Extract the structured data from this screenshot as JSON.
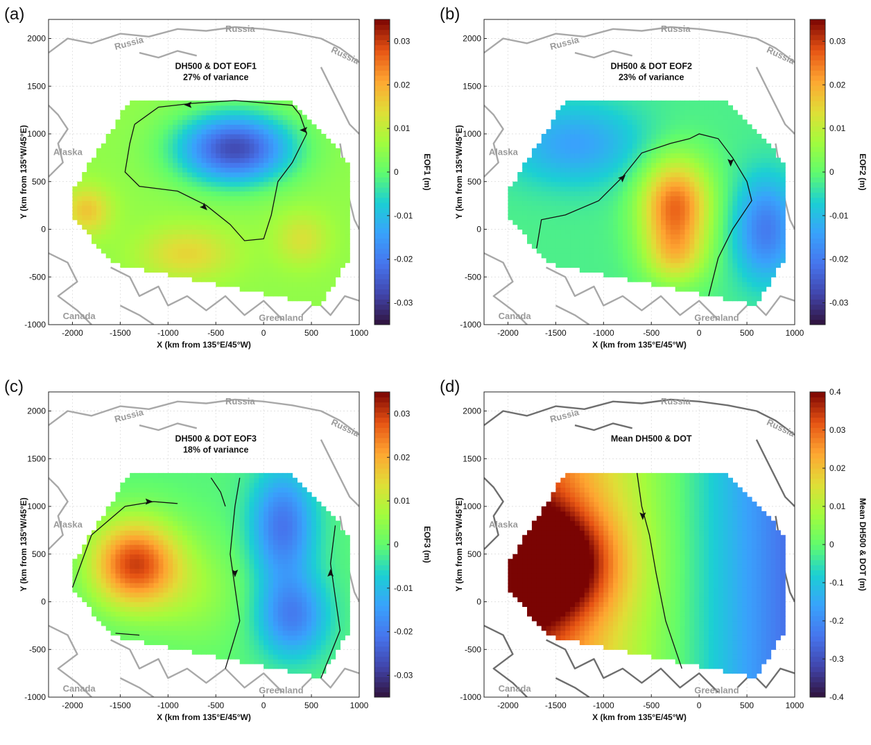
{
  "figure": {
    "xlabel": "X (km from 135°E/45°W)",
    "ylabel": "Y (km from 135°W/45°E)",
    "geo_labels": [
      "Russia",
      "Russia",
      "Russia",
      "Alaska",
      "Canada",
      "Greenland"
    ]
  },
  "chart_data": [
    {
      "panel": "(a)",
      "type": "heatmap",
      "annotation_line1": "DH500 & DOT EOF1",
      "annotation_line2": "27% of variance",
      "colorbar_label": "EOF1 (m)",
      "colorbar_ticks": [
        "0.03",
        "0.02",
        "0.01",
        "0",
        "-0.01",
        "-0.02",
        "-0.03"
      ],
      "clim": [
        -0.035,
        0.035
      ],
      "xlim": [
        -2250,
        1000
      ],
      "ylim": [
        -1000,
        2200
      ],
      "xticks": [
        -2000,
        -1500,
        -1000,
        -500,
        0,
        500,
        1000
      ],
      "yticks": [
        -1000,
        -500,
        0,
        500,
        1000,
        1500,
        2000
      ],
      "features": [
        {
          "x": -300,
          "y": 850,
          "sx": 420,
          "sy": 260,
          "amp": -0.032
        },
        {
          "x": -1850,
          "y": 200,
          "sx": 180,
          "sy": 180,
          "amp": 0.012
        },
        {
          "x": -800,
          "y": -250,
          "sx": 350,
          "sy": 200,
          "amp": 0.01
        },
        {
          "x": 400,
          "y": -100,
          "sx": 200,
          "sy": 200,
          "amp": 0.008
        }
      ],
      "base": 0.005,
      "streamlines": [
        [
          [
            -1350,
            1100
          ],
          [
            -1400,
            900
          ],
          [
            -1450,
            600
          ],
          [
            -1300,
            450
          ],
          [
            -900,
            400
          ],
          [
            -600,
            250
          ],
          [
            -350,
            50
          ],
          [
            -200,
            -120
          ],
          [
            0,
            -100
          ],
          [
            80,
            150
          ],
          [
            150,
            500
          ],
          [
            300,
            700
          ],
          [
            450,
            1000
          ],
          [
            380,
            1200
          ],
          [
            300,
            1300
          ],
          [
            -300,
            1350
          ],
          [
            -750,
            1320
          ],
          [
            -1100,
            1280
          ],
          [
            -1350,
            1100
          ]
        ]
      ],
      "arrows": [
        {
          "x": -790,
          "y": 1305,
          "dir": "left"
        },
        {
          "x": -620,
          "y": 230,
          "dir": "down-right"
        },
        {
          "x": 420,
          "y": 1040,
          "dir": "left"
        }
      ]
    },
    {
      "panel": "(b)",
      "type": "heatmap",
      "annotation_line1": "DH500 & DOT EOF2",
      "annotation_line2": "23% of variance",
      "colorbar_label": "EOF2 (m)",
      "colorbar_ticks": [
        "0.03",
        "0.02",
        "0.01",
        "0",
        "-0.01",
        "-0.02",
        "-0.03"
      ],
      "clim": [
        -0.035,
        0.035
      ],
      "xlim": [
        -2250,
        1000
      ],
      "ylim": [
        -1000,
        2200
      ],
      "xticks": [
        -2000,
        -1500,
        -1000,
        -500,
        0,
        500,
        1000
      ],
      "yticks": [
        -1000,
        -500,
        0,
        500,
        1000,
        1500,
        2000
      ],
      "features": [
        {
          "x": -250,
          "y": 250,
          "sx": 260,
          "sy": 350,
          "amp": 0.028
        },
        {
          "x": -250,
          "y": -300,
          "sx": 230,
          "sy": 220,
          "amp": 0.012
        },
        {
          "x": 700,
          "y": 0,
          "sx": 230,
          "sy": 380,
          "amp": -0.018
        },
        {
          "x": -1300,
          "y": 900,
          "sx": 500,
          "sy": 300,
          "amp": -0.012
        }
      ],
      "base": -0.002,
      "streamlines": [
        [
          [
            -1700,
            -200
          ],
          [
            -1650,
            100
          ],
          [
            -1400,
            150
          ],
          [
            -1050,
            300
          ],
          [
            -800,
            550
          ],
          [
            -600,
            800
          ],
          [
            -300,
            900
          ],
          [
            -100,
            950
          ],
          [
            0,
            1000
          ],
          [
            200,
            950
          ],
          [
            350,
            750
          ],
          [
            500,
            500
          ],
          [
            550,
            300
          ],
          [
            350,
            0
          ],
          [
            200,
            -300
          ],
          [
            100,
            -700
          ]
        ]
      ],
      "arrows": [
        {
          "x": -800,
          "y": 540,
          "dir": "up-right"
        },
        {
          "x": 330,
          "y": 700,
          "dir": "down"
        }
      ]
    },
    {
      "panel": "(c)",
      "type": "heatmap",
      "annotation_line1": "DH500 & DOT  EOF3",
      "annotation_line2": "18% of variance",
      "colorbar_label": "EOF3 (m)",
      "colorbar_ticks": [
        "0.03",
        "0.02",
        "0.01",
        "0",
        "-0.01",
        "-0.02",
        "-0.03"
      ],
      "clim": [
        -0.035,
        0.035
      ],
      "xlim": [
        -2250,
        1000
      ],
      "ylim": [
        -1000,
        2200
      ],
      "xticks": [
        -2000,
        -1500,
        -1000,
        -500,
        0,
        500,
        1000
      ],
      "yticks": [
        -1000,
        -500,
        0,
        500,
        1000,
        1500,
        2000
      ],
      "features": [
        {
          "x": -1350,
          "y": 400,
          "sx": 330,
          "sy": 330,
          "amp": 0.03
        },
        {
          "x": 200,
          "y": 800,
          "sx": 230,
          "sy": 400,
          "amp": -0.02
        },
        {
          "x": 300,
          "y": -150,
          "sx": 250,
          "sy": 300,
          "amp": -0.018
        },
        {
          "x": -700,
          "y": 100,
          "sx": 350,
          "sy": 400,
          "amp": 0.006
        }
      ],
      "base": -0.001,
      "streamlines": [
        [
          [
            -2000,
            150
          ],
          [
            -1800,
            700
          ],
          [
            -1450,
            1000
          ],
          [
            -1150,
            1050
          ],
          [
            -900,
            1030
          ]
        ],
        [
          [
            -550,
            1300
          ],
          [
            -450,
            1150
          ],
          [
            -400,
            1000
          ]
        ],
        [
          [
            -250,
            1300
          ],
          [
            -300,
            1000
          ],
          [
            -350,
            500
          ],
          [
            -250,
            -200
          ],
          [
            -400,
            -700
          ]
        ],
        [
          [
            750,
            800
          ],
          [
            700,
            400
          ],
          [
            800,
            -300
          ],
          [
            600,
            -800
          ]
        ],
        [
          [
            -1550,
            -330
          ],
          [
            -1300,
            -350
          ]
        ]
      ],
      "arrows": [
        {
          "x": -1200,
          "y": 1050,
          "dir": "right"
        },
        {
          "x": -300,
          "y": 300,
          "dir": "down"
        },
        {
          "x": 700,
          "y": 300,
          "dir": "up"
        }
      ]
    },
    {
      "panel": "(d)",
      "type": "heatmap",
      "annotation_line1": "Mean DH500 & DOT",
      "annotation_line2": "",
      "colorbar_label": "Mean DH500 & DOT (m)",
      "colorbar_ticks": [
        "0.4",
        "0.03",
        "0.02",
        "0.01",
        "0",
        "-0.1",
        "-0.2",
        "-0.3",
        "-0.4"
      ],
      "clim": [
        -0.4,
        0.4
      ],
      "xlim": [
        -2250,
        1000
      ],
      "ylim": [
        -1000,
        2200
      ],
      "xticks": [
        -2000,
        -1500,
        -1000,
        -500,
        0,
        500,
        1000
      ],
      "yticks": [
        -1000,
        -500,
        0,
        500,
        1000,
        1500,
        2000
      ],
      "features": [
        {
          "x": -1600,
          "y": 400,
          "sx": 500,
          "sy": 420,
          "amp": 0.32
        }
      ],
      "gradient": {
        "ax": -0.00022,
        "b": -0.05
      },
      "base": 0.0,
      "streamlines": [
        [
          [
            -650,
            1350
          ],
          [
            -600,
            1000
          ],
          [
            -520,
            700
          ],
          [
            -450,
            300
          ],
          [
            -350,
            -200
          ],
          [
            -180,
            -700
          ]
        ]
      ],
      "arrows": [
        {
          "x": -590,
          "y": 900,
          "dir": "down"
        }
      ]
    }
  ]
}
